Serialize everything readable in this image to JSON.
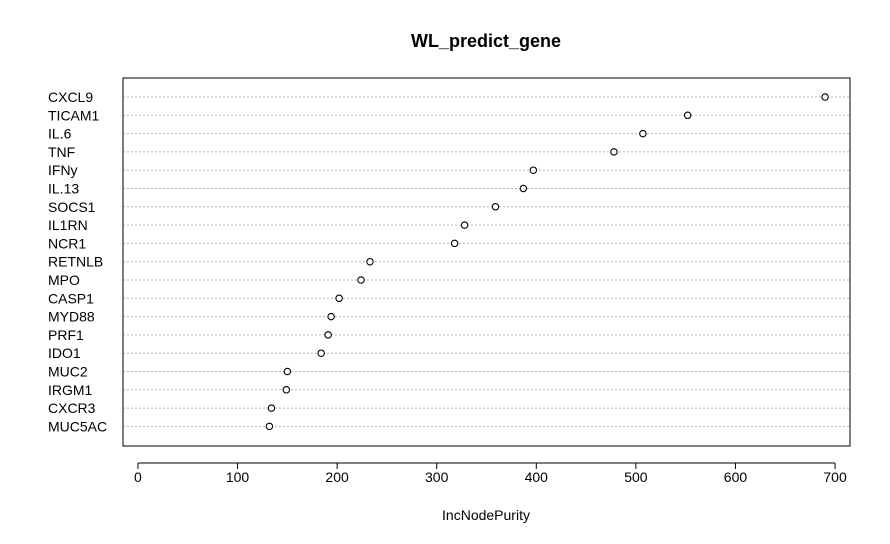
{
  "chart_data": {
    "type": "scatter",
    "title": "WL_predict_gene",
    "xlabel": "IncNodePurity",
    "ylabel": "",
    "xlim": [
      -15,
      715
    ],
    "xticks": [
      0,
      100,
      200,
      300,
      400,
      500,
      600,
      700
    ],
    "grid": "dotted horizontal guide lines",
    "categories": [
      "CXCL9",
      "TICAM1",
      "IL.6",
      "TNF",
      "IFNy",
      "IL.13",
      "SOCS1",
      "IL1RN",
      "NCR1",
      "RETNLB",
      "MPO",
      "CASP1",
      "MYD88",
      "PRF1",
      "IDO1",
      "MUC2",
      "IRGM1",
      "CXCR3",
      "MUC5AC"
    ],
    "values": [
      690,
      552,
      507,
      478,
      397,
      387,
      359,
      328,
      318,
      233,
      224,
      202,
      194,
      191,
      184,
      150,
      149,
      134,
      132
    ]
  }
}
